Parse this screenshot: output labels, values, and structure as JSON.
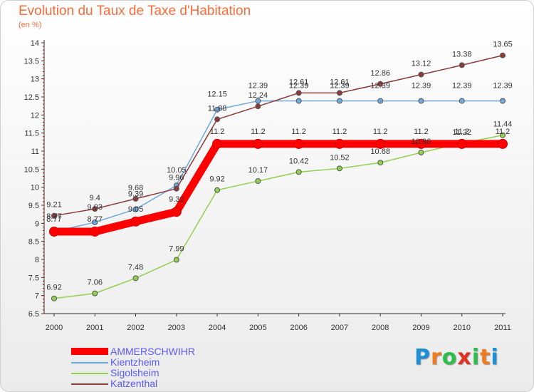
{
  "title": "Evolution du Taux de Taxe d'Habitation",
  "subtitle": "(en %)",
  "logo": {
    "letters": [
      "P",
      "r",
      "o",
      "x",
      "i",
      "t",
      "i"
    ],
    "colors": [
      "#1e8fd6",
      "#f07a1e",
      "#2bbf4a",
      "#e0301e",
      "#2bbf4a",
      "#f07a1e",
      "#1e8fd6"
    ]
  },
  "chart_data": {
    "type": "line",
    "x": [
      "2000",
      "2001",
      "2002",
      "2003",
      "2004",
      "2005",
      "2006",
      "2007",
      "2008",
      "2009",
      "2010",
      "2011"
    ],
    "ylim": [
      6.5,
      14
    ],
    "yticks": [
      "6.5",
      "7",
      "7.5",
      "8",
      "8.5",
      "9",
      "9.5",
      "10",
      "10.5",
      "11",
      "11.5",
      "12",
      "12.5",
      "13",
      "13.5",
      "14"
    ],
    "grid": false,
    "legend_position": "bottom-left",
    "series": [
      {
        "name": "AMMERSCHWIHR",
        "color": "#ff0000",
        "width": 11,
        "values": [
          8.77,
          8.77,
          9.05,
          9.32,
          11.2,
          11.2,
          11.2,
          11.2,
          11.2,
          11.2,
          11.2,
          11.2
        ],
        "labels": [
          "8.77",
          "8.77",
          "9.05",
          "9.32",
          "11.2",
          "11.2",
          "11.2",
          "11.2",
          "11.2",
          "11.2",
          "11.2",
          "11.2"
        ]
      },
      {
        "name": "Kientzheim",
        "color": "#6fa8dc",
        "width": 1.5,
        "values": [
          8.77,
          9.03,
          9.39,
          10.05,
          12.15,
          12.39,
          12.39,
          12.39,
          12.39,
          12.39,
          12.39,
          12.39
        ],
        "labels": [
          "8.77",
          "9.03",
          "9.39",
          "10.05",
          "12.15",
          "12.39",
          "12.39",
          "12.39",
          "12.39",
          "12.39",
          "12.39",
          "12.39"
        ]
      },
      {
        "name": "Sigolsheim",
        "color": "#92d050",
        "width": 1.5,
        "values": [
          6.92,
          7.06,
          7.48,
          7.99,
          9.92,
          10.17,
          10.42,
          10.52,
          10.68,
          10.96,
          11.22,
          11.44
        ],
        "labels": [
          "6.92",
          "7.06",
          "7.48",
          "7.99",
          "9.92",
          "10.17",
          "10.42",
          "10.52",
          "10.68",
          "10.96",
          "11.22",
          "11.44"
        ]
      },
      {
        "name": "Katzenthal",
        "color": "#8b3a3a",
        "width": 1.5,
        "values": [
          9.21,
          9.4,
          9.68,
          9.96,
          11.88,
          12.24,
          12.61,
          12.61,
          12.86,
          13.12,
          13.38,
          13.65
        ],
        "labels": [
          "9.21",
          "9.4",
          "9.68",
          "9.96",
          "11.88",
          "12.24",
          "12.61",
          "12.61",
          "12.86",
          "13.12",
          "13.38",
          "13.65"
        ]
      }
    ]
  }
}
